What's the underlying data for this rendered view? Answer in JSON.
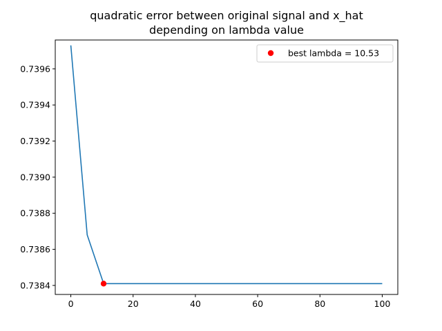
{
  "chart_data": {
    "type": "line",
    "title_lines": [
      "quadratic error between original signal and x_hat",
      "depending on lambda value"
    ],
    "xlabel": "",
    "ylabel": "",
    "xlim": [
      -5,
      105
    ],
    "ylim": [
      0.73835,
      0.73976
    ],
    "x_ticks": [
      0,
      20,
      40,
      60,
      80,
      100
    ],
    "x_tick_labels": [
      "0",
      "20",
      "40",
      "60",
      "80",
      "100"
    ],
    "y_ticks": [
      0.7384,
      0.7386,
      0.7388,
      0.739,
      0.7392,
      0.7394,
      0.7396
    ],
    "y_tick_labels": [
      "0.7384",
      "0.7386",
      "0.7388",
      "0.7390",
      "0.7392",
      "0.7394",
      "0.7396"
    ],
    "grid": false,
    "legend_position": "upper right",
    "series": [
      {
        "color": "#1f77b4",
        "x": [
          0,
          5.26,
          10.53,
          15.79,
          21.05,
          26.32,
          31.58,
          36.84,
          42.11,
          47.37,
          52.63,
          57.89,
          63.16,
          68.42,
          73.68,
          78.95,
          84.21,
          89.47,
          94.74,
          100
        ],
        "y": [
          0.73973,
          0.73868,
          0.73841,
          0.73841,
          0.73841,
          0.73841,
          0.73841,
          0.73841,
          0.73841,
          0.73841,
          0.73841,
          0.73841,
          0.73841,
          0.73841,
          0.73841,
          0.73841,
          0.73841,
          0.73841,
          0.73841,
          0.73841
        ]
      }
    ],
    "highlight_point": {
      "name": "best lambda = 10.53",
      "x": 10.53,
      "y": 0.73841,
      "color": "#ff0000"
    }
  }
}
